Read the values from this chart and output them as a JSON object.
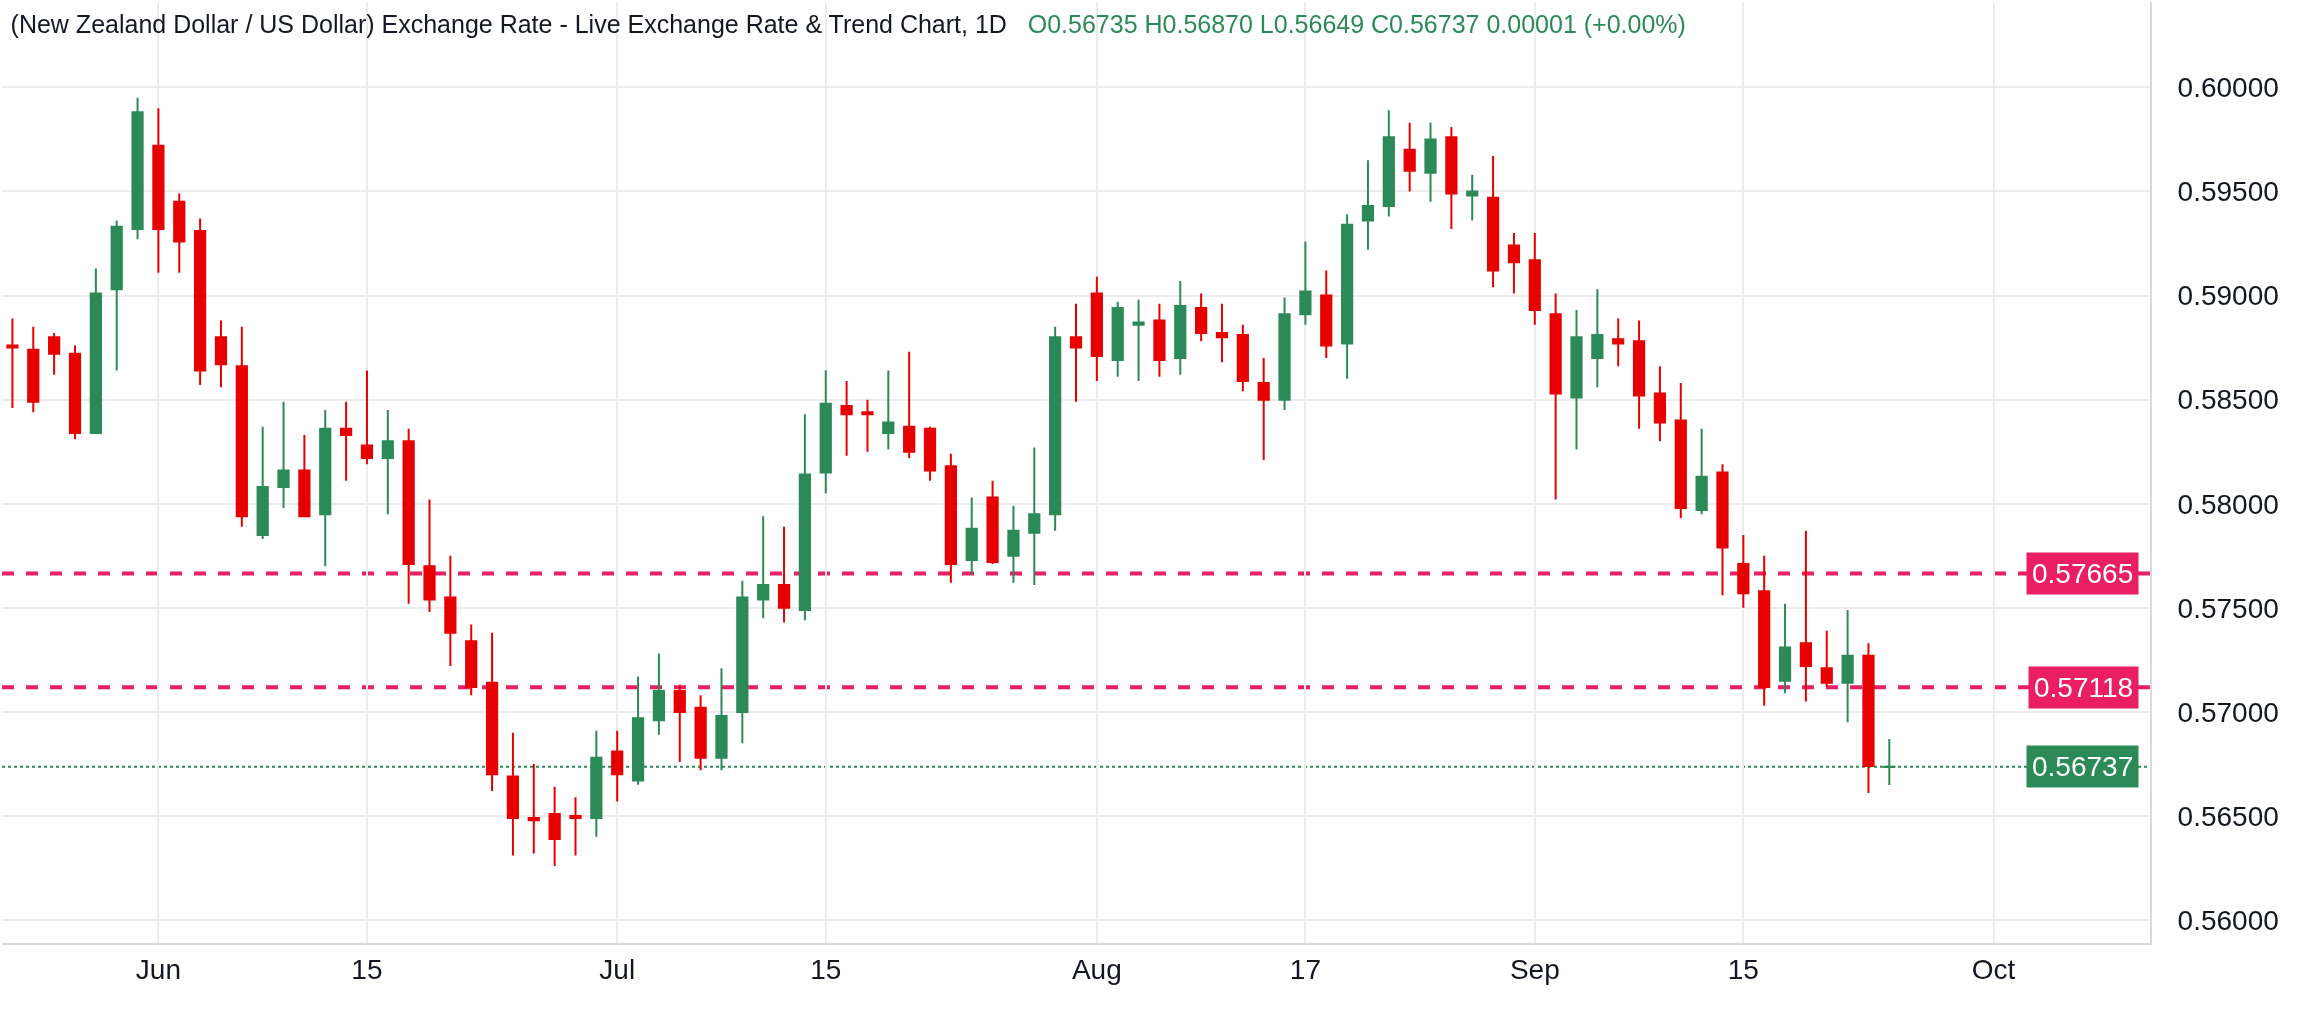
{
  "chart_data": {
    "type": "candlestick",
    "title": "(New Zealand Dollar / US Dollar) Exchange Rate - Live Exchange Rate & Trend Chart, 1D",
    "annotations": [
      "O0.56735 H0.56870 L0.56649 C0.56737 0.00001 (+0.00%)"
    ],
    "categories": [
      null,
      null,
      null,
      null,
      null,
      null,
      null,
      "Jun",
      null,
      null,
      null,
      null,
      null,
      null,
      null,
      null,
      null,
      "15",
      null,
      null,
      null,
      null,
      null,
      null,
      null,
      null,
      null,
      null,
      null,
      "Jul",
      null,
      null,
      null,
      null,
      null,
      null,
      null,
      null,
      null,
      "15",
      null,
      null,
      null,
      null,
      null,
      null,
      null,
      null,
      null,
      null,
      null,
      null,
      "Aug",
      null,
      null,
      null,
      null,
      null,
      null,
      null,
      null,
      null,
      "17",
      null,
      null,
      null,
      null,
      null,
      null,
      null,
      null,
      null,
      null,
      "Sep",
      null,
      null,
      null,
      null,
      null,
      null,
      null,
      null,
      null,
      "15",
      null,
      null,
      null,
      null,
      null,
      null,
      null,
      null,
      null,
      null,
      null,
      "Oct",
      null,
      null,
      null,
      null,
      null,
      null,
      null
    ],
    "ohlc": [
      [
        0.5876,
        0.5889,
        0.5846,
        0.5875
      ],
      [
        0.5874,
        0.5885,
        0.5844,
        0.5849
      ],
      [
        0.588,
        0.5882,
        0.5862,
        0.5872
      ],
      [
        0.5872,
        0.5876,
        0.5831,
        0.5834
      ],
      [
        0.5834,
        0.5913,
        0.5834,
        0.5901
      ],
      [
        0.5903,
        0.5936,
        0.5864,
        0.5933
      ],
      [
        0.5932,
        0.5995,
        0.5927,
        0.5988
      ],
      [
        0.5972,
        0.599,
        0.5911,
        0.5932
      ],
      [
        0.5945,
        0.5949,
        0.5911,
        0.5926
      ],
      [
        0.5931,
        0.5937,
        0.5857,
        0.5864
      ],
      [
        0.588,
        0.5888,
        0.5856,
        0.5867
      ],
      [
        0.5866,
        0.5885,
        0.5789,
        0.5794
      ],
      [
        0.5785,
        0.5837,
        0.5783,
        0.5808
      ],
      [
        0.5808,
        0.5849,
        0.5798,
        0.5816
      ],
      [
        0.5816,
        0.5833,
        0.5794,
        0.5794
      ],
      [
        0.5795,
        0.5845,
        0.577,
        0.5836
      ],
      [
        0.5836,
        0.5849,
        0.5811,
        0.5833
      ],
      [
        0.5828,
        0.5864,
        0.5819,
        0.5822
      ],
      [
        0.5822,
        0.5845,
        0.5795,
        0.583
      ],
      [
        0.583,
        0.5836,
        0.5752,
        0.5771
      ],
      [
        0.577,
        0.5802,
        0.5748,
        0.5754
      ],
      [
        0.5755,
        0.5775,
        0.5722,
        0.5738
      ],
      [
        0.5734,
        0.5742,
        0.5708,
        0.5712
      ],
      [
        0.5714,
        0.5738,
        0.5662,
        0.567
      ],
      [
        0.5669,
        0.569,
        0.5631,
        0.5649
      ],
      [
        0.5649,
        0.5675,
        0.5632,
        0.5648
      ],
      [
        0.5651,
        0.5664,
        0.5626,
        0.5639
      ],
      [
        0.565,
        0.5659,
        0.5631,
        0.5649
      ],
      [
        0.5649,
        0.5691,
        0.564,
        0.5678
      ],
      [
        0.5681,
        0.5691,
        0.5657,
        0.567
      ],
      [
        0.5667,
        0.5717,
        0.5665,
        0.5697
      ],
      [
        0.5696,
        0.5728,
        0.5689,
        0.571
      ],
      [
        0.571,
        0.5713,
        0.5676,
        0.57
      ],
      [
        0.5702,
        0.5708,
        0.5672,
        0.5678
      ],
      [
        0.5678,
        0.5721,
        0.5672,
        0.5698
      ],
      [
        0.57,
        0.5763,
        0.5685,
        0.5755
      ],
      [
        0.5754,
        0.5794,
        0.5745,
        0.5761
      ],
      [
        0.5761,
        0.5789,
        0.5743,
        0.575
      ],
      [
        0.5749,
        0.5843,
        0.5744,
        0.5814
      ],
      [
        0.5815,
        0.5864,
        0.5805,
        0.5848
      ],
      [
        0.5847,
        0.5859,
        0.5823,
        0.5843
      ],
      [
        0.5844,
        0.585,
        0.5825,
        0.5843
      ],
      [
        0.5834,
        0.5864,
        0.5826,
        0.5839
      ],
      [
        0.5837,
        0.5873,
        0.5822,
        0.5825
      ],
      [
        0.5836,
        0.5837,
        0.5811,
        0.5816
      ],
      [
        0.5818,
        0.5824,
        0.5762,
        0.5771
      ],
      [
        0.5773,
        0.5803,
        0.5766,
        0.5788
      ],
      [
        0.5803,
        0.5811,
        0.5771,
        0.5772
      ],
      [
        0.5775,
        0.5799,
        0.5762,
        0.5787
      ],
      [
        0.5786,
        0.5827,
        0.5761,
        0.5795
      ],
      [
        0.5795,
        0.5885,
        0.5787,
        0.588
      ],
      [
        0.588,
        0.5896,
        0.5849,
        0.5875
      ],
      [
        0.5901,
        0.5909,
        0.5859,
        0.5871
      ],
      [
        0.5869,
        0.5897,
        0.5861,
        0.5894
      ],
      [
        0.5886,
        0.5898,
        0.5859,
        0.5887
      ],
      [
        0.5888,
        0.5896,
        0.5861,
        0.5869
      ],
      [
        0.587,
        0.5907,
        0.5862,
        0.5895
      ],
      [
        0.5894,
        0.5901,
        0.5878,
        0.5882
      ],
      [
        0.5882,
        0.5896,
        0.5868,
        0.588
      ],
      [
        0.5881,
        0.5886,
        0.5854,
        0.5859
      ],
      [
        0.5858,
        0.587,
        0.5821,
        0.585
      ],
      [
        0.585,
        0.5899,
        0.5845,
        0.5891
      ],
      [
        0.5891,
        0.5926,
        0.5886,
        0.5902
      ],
      [
        0.59,
        0.5912,
        0.587,
        0.5876
      ],
      [
        0.5877,
        0.5939,
        0.586,
        0.5934
      ],
      [
        0.5936,
        0.5965,
        0.5922,
        0.5943
      ],
      [
        0.5943,
        0.5989,
        0.5938,
        0.5976
      ],
      [
        0.597,
        0.5983,
        0.595,
        0.596
      ],
      [
        0.5959,
        0.5983,
        0.5945,
        0.5975
      ],
      [
        0.5976,
        0.5981,
        0.5932,
        0.5949
      ],
      [
        0.5948,
        0.5958,
        0.5936,
        0.595
      ],
      [
        0.5947,
        0.5967,
        0.5904,
        0.5912
      ],
      [
        0.5924,
        0.593,
        0.5901,
        0.5916
      ],
      [
        0.5917,
        0.593,
        0.5886,
        0.5893
      ],
      [
        0.5891,
        0.5901,
        0.5802,
        0.5853
      ],
      [
        0.5851,
        0.5893,
        0.5826,
        0.588
      ],
      [
        0.587,
        0.5903,
        0.5856,
        0.5881
      ],
      [
        0.5879,
        0.5889,
        0.5866,
        0.5877
      ],
      [
        0.5878,
        0.5888,
        0.5836,
        0.5852
      ],
      [
        0.5853,
        0.5866,
        0.583,
        0.5839
      ],
      [
        0.584,
        0.5858,
        0.5793,
        0.5798
      ],
      [
        0.5797,
        0.5836,
        0.5795,
        0.5813
      ],
      [
        0.5815,
        0.5819,
        0.5756,
        0.5779
      ],
      [
        0.5771,
        0.5785,
        0.575,
        0.5757
      ],
      [
        0.5758,
        0.5775,
        0.5703,
        0.5712
      ],
      [
        0.5715,
        0.5752,
        0.5709,
        0.5731
      ],
      [
        0.5733,
        0.5787,
        0.5705,
        0.5722
      ],
      [
        0.5721,
        0.5739,
        0.5712,
        0.5714
      ],
      [
        0.5714,
        0.5749,
        0.5695,
        0.5727
      ],
      [
        0.5727,
        0.5733,
        0.5661,
        0.5674
      ],
      [
        0.56735,
        0.5687,
        0.56649,
        0.56737
      ],
      null,
      null,
      null,
      null,
      null,
      null,
      null,
      null,
      null,
      null,
      null,
      null
    ],
    "ylim": [
      0.5589,
      0.6041
    ],
    "yticks": [
      {
        "value": 0.56,
        "label": "0.56000"
      },
      {
        "value": 0.565,
        "label": "0.56500"
      },
      {
        "value": 0.57,
        "label": "0.57000"
      },
      {
        "value": 0.575,
        "label": "0.57500"
      },
      {
        "value": 0.58,
        "label": "0.58000"
      },
      {
        "value": 0.585,
        "label": "0.58500"
      },
      {
        "value": 0.59,
        "label": "0.59000"
      },
      {
        "value": 0.595,
        "label": "0.59500"
      },
      {
        "value": 0.6,
        "label": "0.60000"
      }
    ],
    "grid": true,
    "ref_lines": [
      {
        "axis": "y",
        "value": 0.57665,
        "label": "0.57665",
        "color": "#e91e63",
        "line_style": "dashed"
      },
      {
        "axis": "y",
        "value": 0.57118,
        "label": "0.57118",
        "color": "#e91e63",
        "line_style": "dashed"
      },
      {
        "axis": "y",
        "value": 0.56737,
        "label": "0.56737",
        "color": "#2b8a57",
        "line_style": "dotted"
      }
    ]
  }
}
